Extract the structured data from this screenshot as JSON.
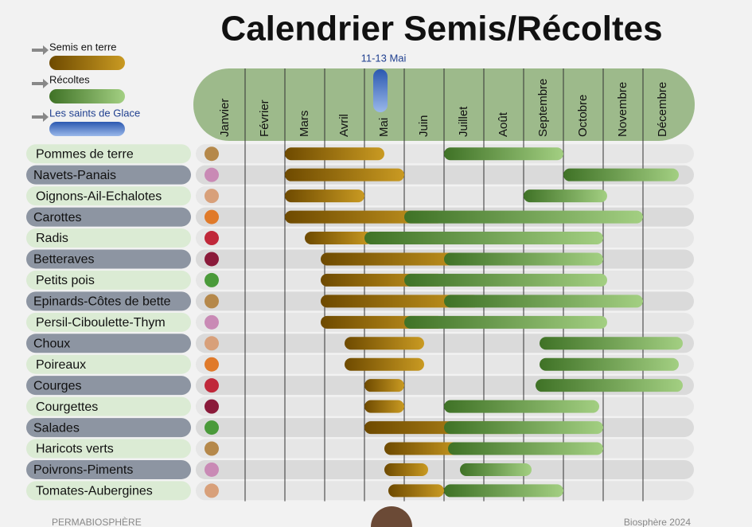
{
  "chart_data": {
    "type": "gantt",
    "title": "Calendrier Semis/Récoltes",
    "legend": {
      "sowing": "Semis en terre",
      "harvest": "Récoltes",
      "saints": "Les saints de Glace"
    },
    "colors": {
      "sowing": [
        "#6e4a00",
        "#c99a22"
      ],
      "harvest": [
        "#3f7226",
        "#a3cf82"
      ],
      "saints": [
        "#2b58b0",
        "#9ab8ea"
      ]
    },
    "saints_de_glace": {
      "label": "11-13 Mai",
      "value": 4.4
    },
    "categories": [
      "Janvier",
      "Février",
      "Mars",
      "Avril",
      "Mai",
      "Juin",
      "Juillet",
      "Août",
      "Septembre",
      "Octobre",
      "Novembre",
      "Décembre"
    ],
    "xlim": [
      0,
      12
    ],
    "rows": [
      {
        "name": "Pommes de terre",
        "sowing": [
          2.0,
          4.5
        ],
        "harvest": [
          6.0,
          9.0
        ]
      },
      {
        "name": "Navets-Panais",
        "sowing": [
          2.0,
          5.0
        ],
        "harvest": [
          9.0,
          11.9
        ]
      },
      {
        "name": "Oignons-Ail-Echalotes",
        "sowing": [
          2.0,
          4.0
        ],
        "harvest": [
          8.0,
          10.1
        ]
      },
      {
        "name": "Carottes",
        "sowing": [
          2.0,
          6.0
        ],
        "harvest": [
          5.0,
          11.0
        ]
      },
      {
        "name": "Radis",
        "sowing": [
          2.5,
          4.2
        ],
        "harvest": [
          4.0,
          10.0
        ]
      },
      {
        "name": "Betteraves",
        "sowing": [
          2.9,
          6.9
        ],
        "harvest": [
          6.0,
          10.0
        ]
      },
      {
        "name": "Petits pois",
        "sowing": [
          2.9,
          6.0
        ],
        "harvest": [
          5.0,
          10.1
        ]
      },
      {
        "name": "Epinards-Côtes de bette",
        "sowing": [
          2.9,
          6.9
        ],
        "harvest": [
          6.0,
          11.0
        ]
      },
      {
        "name": "Persil-Ciboulette-Thym",
        "sowing": [
          2.9,
          6.0
        ],
        "harvest": [
          5.0,
          10.1
        ]
      },
      {
        "name": "Choux",
        "sowing": [
          3.5,
          5.5
        ],
        "harvest": [
          8.4,
          12.0
        ]
      },
      {
        "name": "Poireaux",
        "sowing": [
          3.5,
          5.5
        ],
        "harvest": [
          8.4,
          11.9
        ]
      },
      {
        "name": "Courges",
        "sowing": [
          4.0,
          5.0
        ],
        "harvest": [
          8.3,
          12.0
        ]
      },
      {
        "name": "Courgettes",
        "sowing": [
          4.0,
          5.0
        ],
        "harvest": [
          6.0,
          9.9
        ]
      },
      {
        "name": "Salades",
        "sowing": [
          4.0,
          8.0
        ],
        "harvest": [
          6.0,
          10.0
        ]
      },
      {
        "name": "Haricots verts",
        "sowing": [
          4.5,
          6.5
        ],
        "harvest": [
          6.1,
          10.0
        ]
      },
      {
        "name": "Poivrons-Piments",
        "sowing": [
          4.5,
          5.6
        ],
        "harvest": [
          6.4,
          8.2
        ]
      },
      {
        "name": "Tomates-Aubergines",
        "sowing": [
          4.6,
          6.0
        ],
        "harvest": [
          6.0,
          9.0
        ]
      }
    ],
    "footer_left": "PERMABIOSPHÈRE",
    "footer_right": "Biosphère 2024"
  }
}
